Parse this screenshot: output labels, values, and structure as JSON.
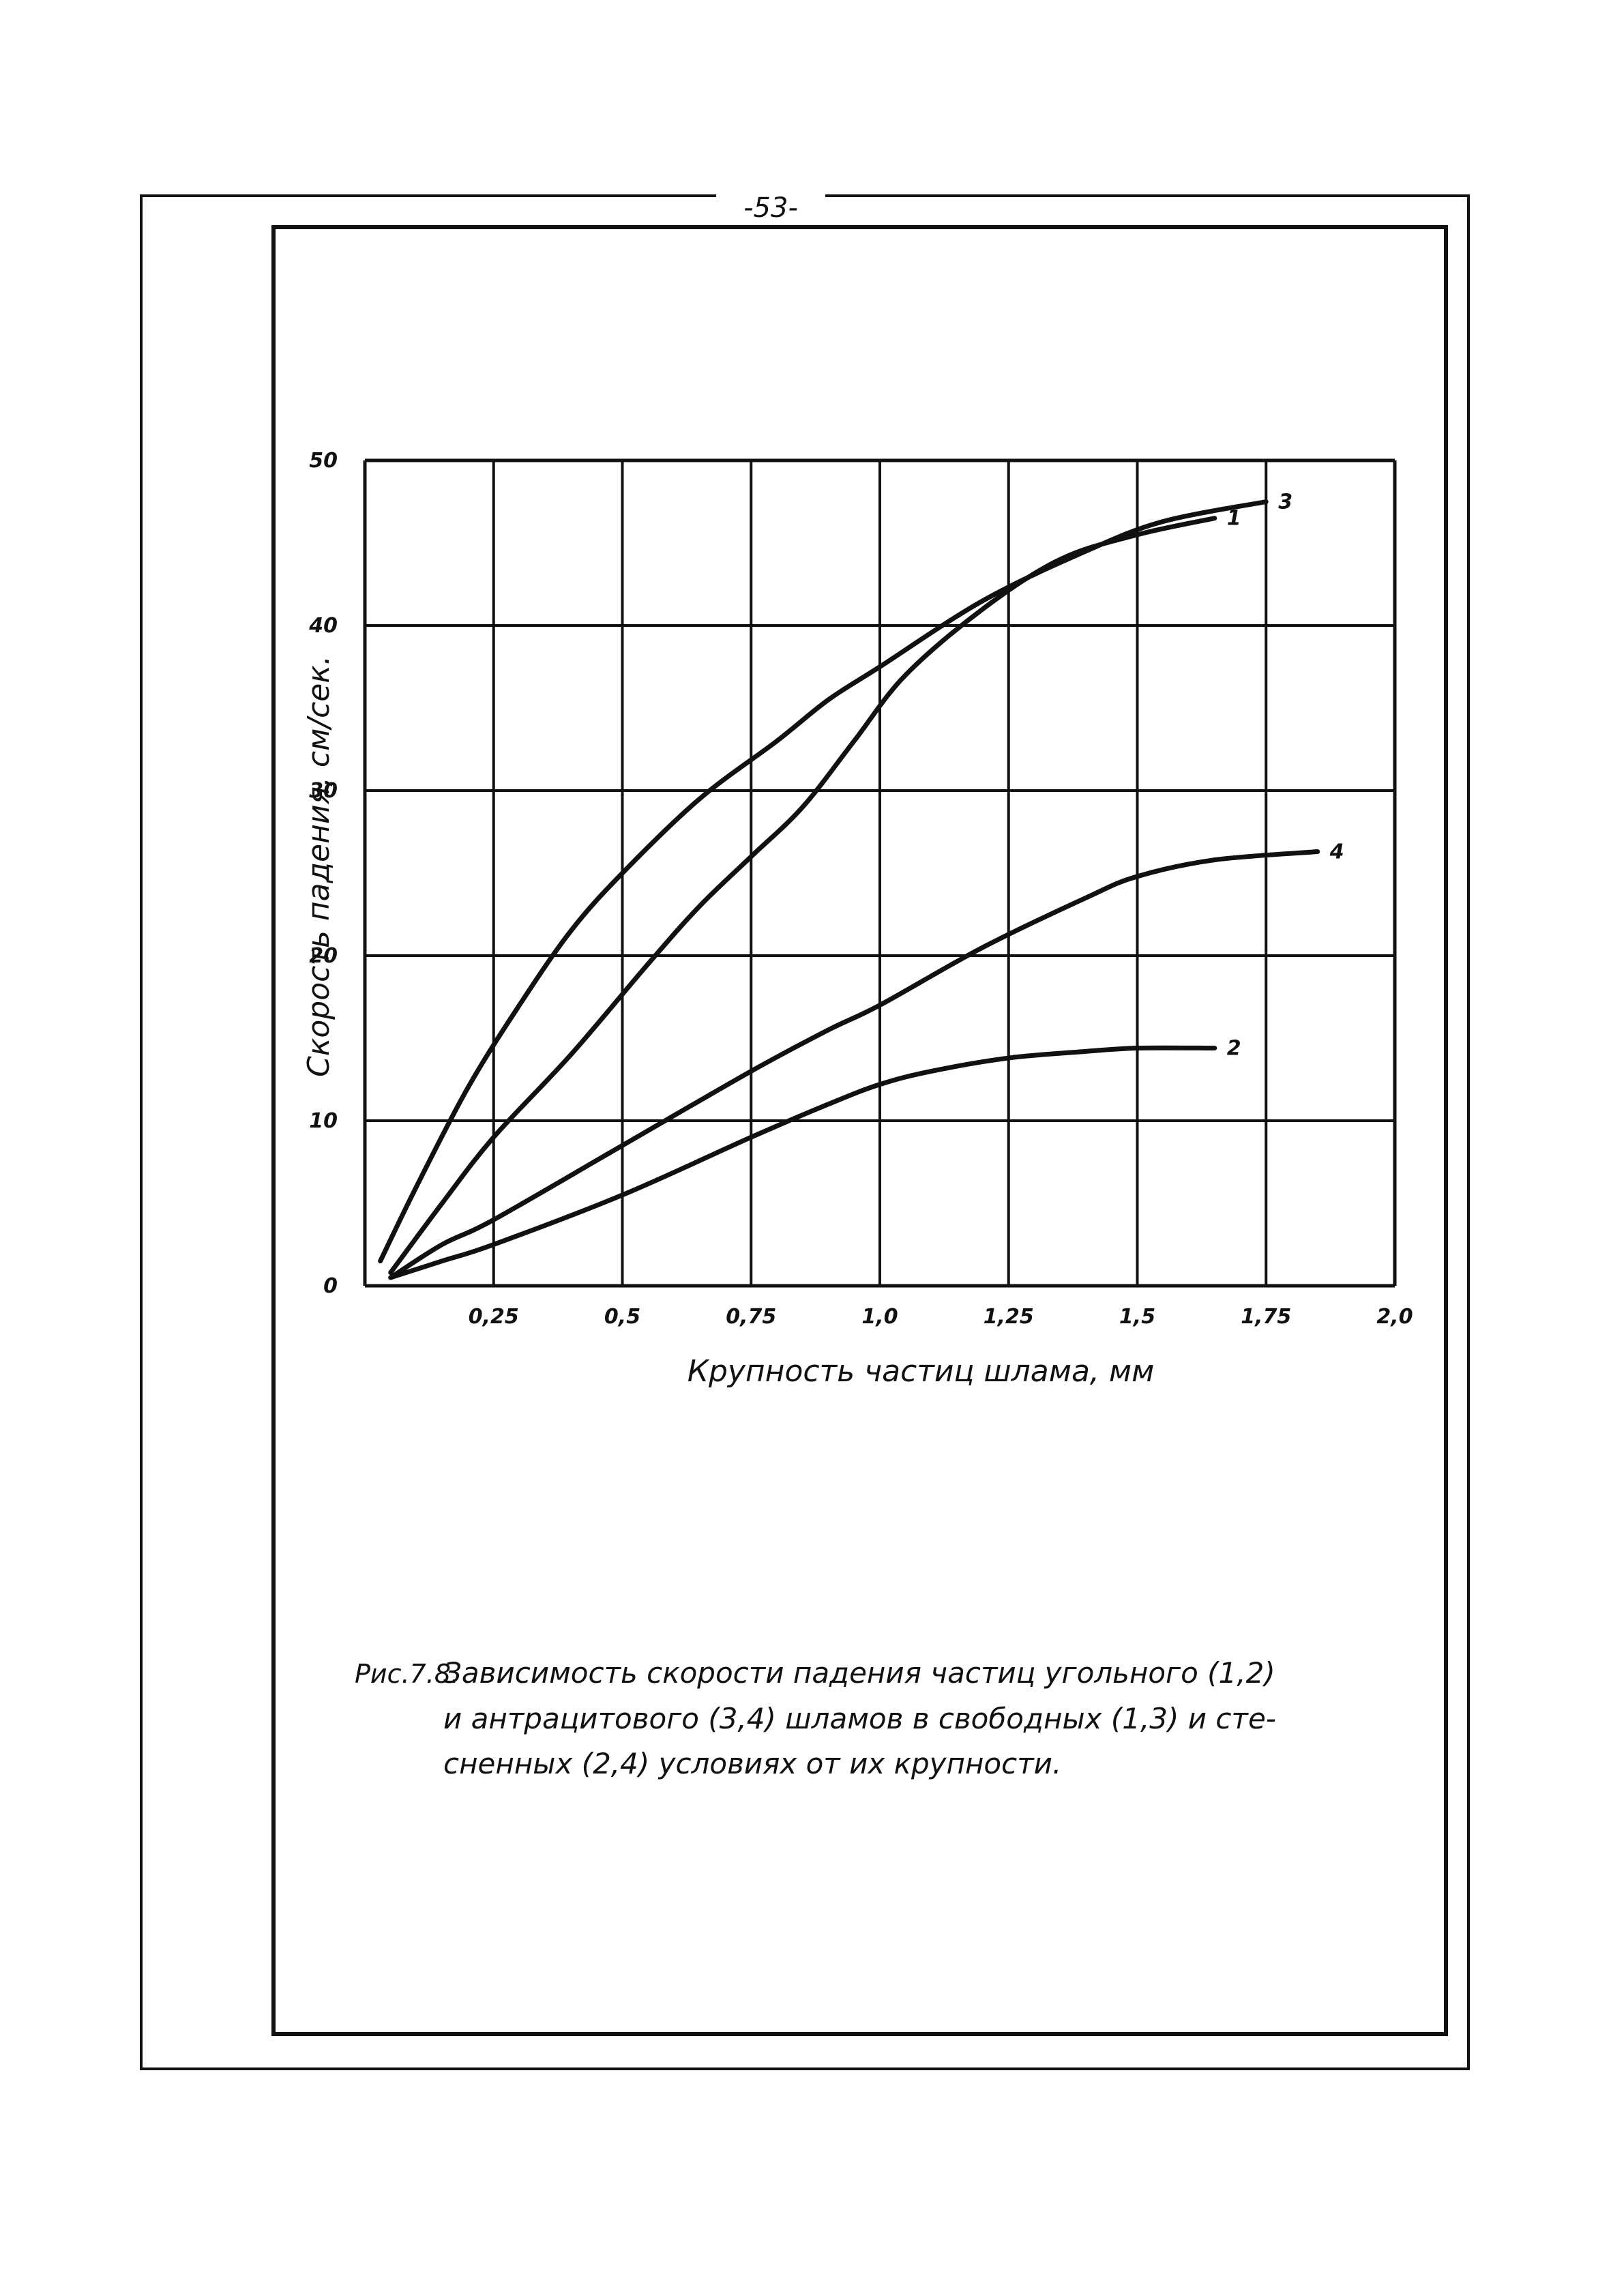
{
  "page": {
    "number": "-53-"
  },
  "chart_data": {
    "type": "line",
    "xlabel": "Крупность частиц шлама, мм",
    "ylabel": "Скорость падения, см/сек.",
    "xlim": [
      0,
      2.0
    ],
    "ylim": [
      0,
      50
    ],
    "x_ticks": [
      "0,25",
      "0,5",
      "0,75",
      "1,0",
      "1,25",
      "1,5",
      "1,75",
      "2,0"
    ],
    "y_ticks": [
      "0",
      "10",
      "20",
      "30",
      "40",
      "50"
    ],
    "grid": true,
    "series": [
      {
        "name": "1",
        "x": [
          0.05,
          0.15,
          0.25,
          0.4,
          0.55,
          0.65,
          0.75,
          0.85,
          0.95,
          1.05,
          1.2,
          1.35,
          1.5,
          1.65
        ],
        "y": [
          0.8,
          5,
          9,
          14,
          19.5,
          23,
          26,
          29,
          33,
          37,
          41,
          44,
          45.5,
          46.5
        ]
      },
      {
        "name": "2",
        "x": [
          0.05,
          0.15,
          0.25,
          0.5,
          0.75,
          0.9,
          1.0,
          1.1,
          1.25,
          1.4,
          1.5,
          1.65
        ],
        "y": [
          0.5,
          1.5,
          2.5,
          5.5,
          9,
          11,
          12.2,
          13,
          13.8,
          14.2,
          14.4,
          14.4
        ]
      },
      {
        "name": "3",
        "x": [
          0.03,
          0.1,
          0.2,
          0.3,
          0.4,
          0.5,
          0.65,
          0.8,
          0.9,
          1.0,
          1.2,
          1.4,
          1.55,
          1.75
        ],
        "y": [
          1.5,
          6,
          12,
          17,
          21.5,
          25,
          29.5,
          33,
          35.5,
          37.5,
          41.5,
          44.5,
          46.3,
          47.5
        ]
      },
      {
        "name": "4",
        "x": [
          0.05,
          0.15,
          0.25,
          0.5,
          0.75,
          0.9,
          1.0,
          1.2,
          1.4,
          1.5,
          1.65,
          1.85
        ],
        "y": [
          0.5,
          2.5,
          4,
          8.5,
          13,
          15.5,
          17,
          20.5,
          23.5,
          24.8,
          25.8,
          26.3
        ]
      }
    ]
  },
  "caption": {
    "prefix": "Рис.7.8.",
    "lines": [
      "Зависимость скорости падения частиц угольного (1,2)",
      "и антрацитового (3,4) шламов в свободных (1,3) и сте-",
      "сненных (2,4) условиях от их крупности."
    ]
  }
}
